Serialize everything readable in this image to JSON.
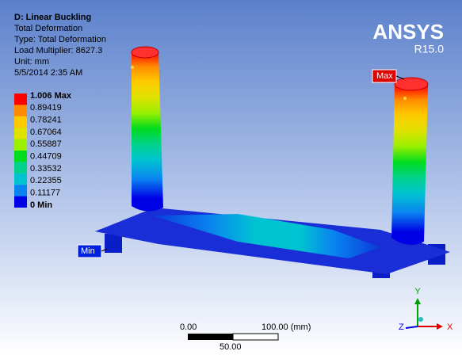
{
  "header": {
    "title": "D: Linear Buckling",
    "lines": [
      "Total Deformation",
      "Type: Total Deformation",
      "Load Multiplier: 8627.3",
      "Unit: mm",
      "5/5/2014 2:35 AM"
    ]
  },
  "legend": {
    "labels": [
      "1.006 Max",
      "0.89419",
      "0.78241",
      "0.67064",
      "0.55887",
      "0.44709",
      "0.33532",
      "0.22355",
      "0.11177",
      "0 Min"
    ],
    "colors": [
      "#ff0000",
      "#ff8c00",
      "#ffc800",
      "#e1e100",
      "#9bef00",
      "#00dc1e",
      "#00d28c",
      "#00c3d2",
      "#0a82f0",
      "#0000e6"
    ]
  },
  "logo": {
    "name": "ANSYS",
    "version": "R15.0"
  },
  "tags": {
    "max": "Max",
    "min": "Min"
  },
  "scale_bar": {
    "left": "0.00",
    "right": "100.00 (mm)",
    "middle": "50.00"
  },
  "triad": {
    "x": "X",
    "y": "Y",
    "z": "Z"
  }
}
